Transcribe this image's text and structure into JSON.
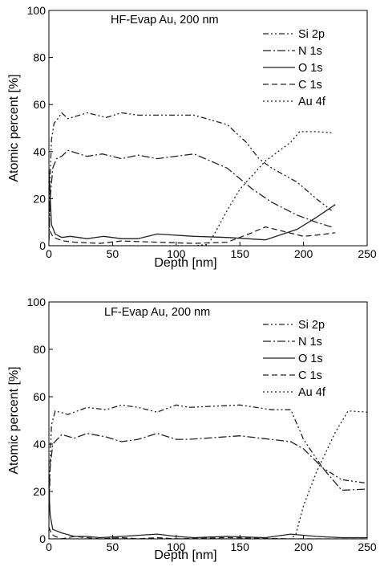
{
  "chart_data": [
    {
      "type": "line",
      "annotation": "HF-Evap Au, 200 nm",
      "xlabel": "Depth [nm]",
      "ylabel": "Atomic percent [%]",
      "xlim": [
        0,
        250
      ],
      "ylim": [
        0,
        100
      ],
      "xticks": [
        "0",
        "50",
        "100",
        "150",
        "200",
        "250"
      ],
      "yticks": [
        "0",
        "20",
        "40",
        "60",
        "80",
        "100"
      ],
      "legend_position": "top-right",
      "series": [
        {
          "name": "Si 2p",
          "dash": "7 3 2 3 2 3",
          "points": [
            [
              0,
              3
            ],
            [
              1,
              30
            ],
            [
              2,
              45
            ],
            [
              4,
              52
            ],
            [
              7,
              54
            ],
            [
              10,
              56.5
            ],
            [
              15,
              54
            ],
            [
              30,
              56.5
            ],
            [
              45,
              54.5
            ],
            [
              57,
              56.5
            ],
            [
              70,
              55.5
            ],
            [
              85,
              55.5
            ],
            [
              114,
              55.5
            ],
            [
              140,
              51.5
            ],
            [
              155,
              44
            ],
            [
              165,
              37
            ],
            [
              175,
              33
            ],
            [
              195,
              27
            ],
            [
              210,
              20
            ],
            [
              222,
              15
            ]
          ]
        },
        {
          "name": "N 1s",
          "dash": "10 3 2 3",
          "points": [
            [
              0,
              2
            ],
            [
              1,
              20
            ],
            [
              3,
              33
            ],
            [
              6,
              37
            ],
            [
              10,
              38
            ],
            [
              15,
              40.5
            ],
            [
              30,
              38
            ],
            [
              42,
              39
            ],
            [
              57,
              37
            ],
            [
              70,
              38.5
            ],
            [
              85,
              37
            ],
            [
              114,
              39
            ],
            [
              140,
              33
            ],
            [
              160,
              24
            ],
            [
              175,
              18.5
            ],
            [
              195,
              13
            ],
            [
              210,
              10
            ],
            [
              222,
              8
            ]
          ]
        },
        {
          "name": "O 1s",
          "dash": "",
          "points": [
            [
              0,
              33
            ],
            [
              1,
              21
            ],
            [
              2,
              9
            ],
            [
              5,
              5
            ],
            [
              10,
              3.5
            ],
            [
              17,
              4
            ],
            [
              30,
              3
            ],
            [
              43,
              4
            ],
            [
              57,
              3
            ],
            [
              70,
              3
            ],
            [
              85,
              5
            ],
            [
              114,
              4
            ],
            [
              140,
              3.5
            ],
            [
              170,
              2.5
            ],
            [
              195,
              7
            ],
            [
              210,
              12
            ],
            [
              225,
              17.5
            ]
          ]
        },
        {
          "name": "C 1s",
          "dash": "7 4",
          "points": [
            [
              0,
              10
            ],
            [
              1,
              6
            ],
            [
              3,
              4
            ],
            [
              6,
              3
            ],
            [
              12,
              2
            ],
            [
              20,
              1.5
            ],
            [
              40,
              1
            ],
            [
              57,
              2
            ],
            [
              85,
              1.5
            ],
            [
              114,
              1
            ],
            [
              140,
              1.5
            ],
            [
              157,
              5
            ],
            [
              170,
              8
            ],
            [
              185,
              6
            ],
            [
              200,
              4
            ],
            [
              210,
              4.5
            ],
            [
              225,
              5.5
            ]
          ]
        },
        {
          "name": "Au 4f",
          "dash": "2 3",
          "points": [
            [
              0,
              0
            ],
            [
              100,
              0
            ],
            [
              114,
              0
            ],
            [
              125,
              0.5
            ],
            [
              130,
              5
            ],
            [
              140,
              15
            ],
            [
              150,
              24
            ],
            [
              170,
              36
            ],
            [
              190,
              44
            ],
            [
              197,
              48.5
            ],
            [
              210,
              48.5
            ],
            [
              222,
              48
            ]
          ]
        }
      ]
    },
    {
      "type": "line",
      "annotation": "LF-Evap Au, 200 nm",
      "xlabel": "Depth [nm]",
      "ylabel": "Atomic percent [%]",
      "xlim": [
        0,
        250
      ],
      "ylim": [
        0,
        100
      ],
      "xticks": [
        "0",
        "50",
        "100",
        "150",
        "200",
        "250"
      ],
      "yticks": [
        "0",
        "20",
        "40",
        "60",
        "80",
        "100"
      ],
      "legend_position": "top-right",
      "series": [
        {
          "name": "Si 2p",
          "dash": "7 3 2 3 2 3",
          "points": [
            [
              0,
              18
            ],
            [
              1,
              33
            ],
            [
              2,
              48
            ],
            [
              5,
              54
            ],
            [
              15,
              52.5
            ],
            [
              30,
              55.5
            ],
            [
              45,
              54.5
            ],
            [
              57,
              56.5
            ],
            [
              70,
              55.5
            ],
            [
              85,
              53.5
            ],
            [
              100,
              56.5
            ],
            [
              110,
              55.5
            ],
            [
              130,
              56
            ],
            [
              150,
              56.5
            ],
            [
              175,
              54.5
            ],
            [
              190,
              54.5
            ],
            [
              200,
              42
            ],
            [
              215,
              30
            ],
            [
              230,
              25
            ],
            [
              250,
              23.5
            ]
          ]
        },
        {
          "name": "N 1s",
          "dash": "10 3 2 3",
          "points": [
            [
              0,
              10
            ],
            [
              1,
              30
            ],
            [
              3,
              40
            ],
            [
              10,
              44
            ],
            [
              20,
              42.5
            ],
            [
              30,
              44.5
            ],
            [
              45,
              43
            ],
            [
              57,
              41
            ],
            [
              70,
              42
            ],
            [
              85,
              44.5
            ],
            [
              100,
              42
            ],
            [
              110,
              42
            ],
            [
              150,
              43.5
            ],
            [
              190,
              41
            ],
            [
              200,
              38
            ],
            [
              215,
              30
            ],
            [
              230,
              20.5
            ],
            [
              250,
              21
            ]
          ]
        },
        {
          "name": "O 1s",
          "dash": "",
          "points": [
            [
              0,
              21
            ],
            [
              1,
              10
            ],
            [
              3,
              4
            ],
            [
              10,
              2.5
            ],
            [
              20,
              1
            ],
            [
              30,
              1
            ],
            [
              40,
              0.5
            ],
            [
              57,
              1
            ],
            [
              70,
              1.5
            ],
            [
              85,
              2
            ],
            [
              100,
              1
            ],
            [
              114,
              0.5
            ],
            [
              140,
              1
            ],
            [
              170,
              0.5
            ],
            [
              190,
              2
            ],
            [
              210,
              1
            ],
            [
              230,
              0.5
            ],
            [
              250,
              0.5
            ]
          ]
        },
        {
          "name": "C 1s",
          "dash": "7 4",
          "points": [
            [
              0,
              5
            ],
            [
              2,
              2
            ],
            [
              5,
              1
            ],
            [
              10,
              0
            ],
            [
              20,
              1
            ],
            [
              30,
              0.5
            ],
            [
              40,
              0
            ],
            [
              57,
              0.5
            ],
            [
              70,
              0
            ],
            [
              85,
              0.5
            ],
            [
              100,
              0
            ],
            [
              140,
              0.5
            ],
            [
              190,
              0
            ],
            [
              250,
              0
            ]
          ]
        },
        {
          "name": "Au 4f",
          "dash": "2 3",
          "points": [
            [
              0,
              0
            ],
            [
              190,
              0
            ],
            [
              194,
              2
            ],
            [
              200,
              14
            ],
            [
              210,
              28
            ],
            [
              225,
              45
            ],
            [
              235,
              54
            ],
            [
              250,
              53.5
            ]
          ]
        }
      ]
    }
  ]
}
